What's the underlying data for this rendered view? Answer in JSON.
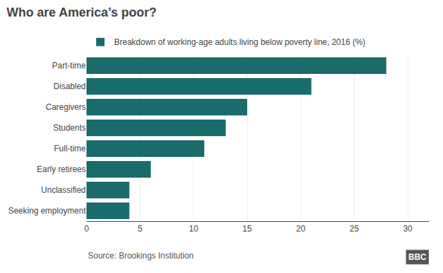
{
  "chart_data": {
    "type": "bar",
    "orientation": "horizontal",
    "title": "Who are America’s poor?",
    "categories": [
      "Seeking employment",
      "Unclassified",
      "Early retirees",
      "Full-time",
      "Students",
      "Caregivers",
      "Disabled",
      "Part-time"
    ],
    "series": [
      {
        "name": "Breakdown of working-age adults living below poverty line, 2016 (%)",
        "color": "#1a6b6b",
        "values": [
          4,
          4,
          6,
          11,
          13,
          15,
          21,
          28
        ]
      }
    ],
    "xlim": [
      0,
      32
    ],
    "xticks": [
      0,
      5,
      10,
      15,
      20,
      25,
      30
    ],
    "grid": true,
    "legend": "top left",
    "annotations": [
      "Source: Brookings Institution",
      "BBC"
    ]
  }
}
